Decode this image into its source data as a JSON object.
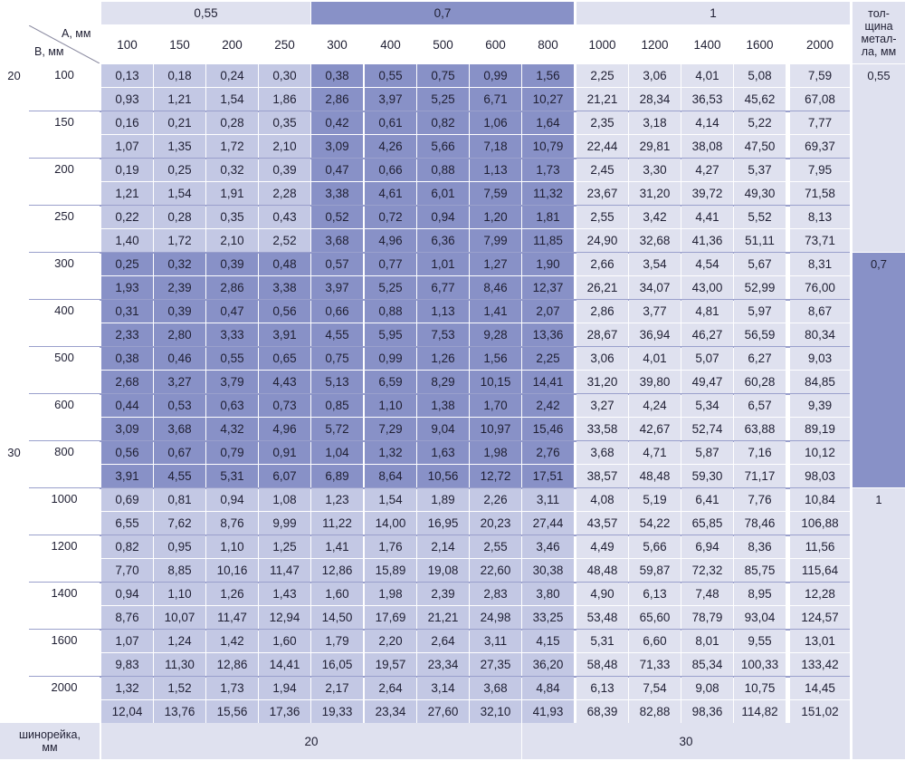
{
  "thickness_groups": [
    {
      "label": "0,55",
      "level": 1
    },
    {
      "label": "0,7",
      "level": 3
    },
    {
      "label": "1",
      "level": 1
    }
  ],
  "corner": {
    "a_label": "A, мм",
    "b_label": "B, мм"
  },
  "thickness_header": "тол-\nщина\nметал-\nла, мм",
  "a_values": [
    "100",
    "150",
    "200",
    "250",
    "300",
    "400",
    "500",
    "600",
    "800",
    "1000",
    "1200",
    "1400",
    "1600",
    "2000"
  ],
  "rows": [
    {
      "b": "100",
      "top": [
        "0,13",
        "0,18",
        "0,24",
        "0,30",
        "0,38",
        "0,55",
        "0,75",
        "0,99",
        "1,56",
        "2,25",
        "3,06",
        "4,01",
        "5,08",
        "7,59"
      ],
      "bottom": [
        "0,93",
        "1,21",
        "1,54",
        "1,86",
        "2,86",
        "3,97",
        "5,25",
        "6,71",
        "10,27",
        "21,21",
        "28,34",
        "36,53",
        "45,62",
        "67,08"
      ]
    },
    {
      "b": "150",
      "top": [
        "0,16",
        "0,21",
        "0,28",
        "0,35",
        "0,42",
        "0,61",
        "0,82",
        "1,06",
        "1,64",
        "2,35",
        "3,18",
        "4,14",
        "5,22",
        "7,77"
      ],
      "bottom": [
        "1,07",
        "1,35",
        "1,72",
        "2,10",
        "3,09",
        "4,26",
        "5,66",
        "7,18",
        "10,79",
        "22,44",
        "29,81",
        "38,08",
        "47,50",
        "69,37"
      ]
    },
    {
      "b": "200",
      "top": [
        "0,19",
        "0,25",
        "0,32",
        "0,39",
        "0,47",
        "0,66",
        "0,88",
        "1,13",
        "1,73",
        "2,45",
        "3,30",
        "4,27",
        "5,37",
        "7,95"
      ],
      "bottom": [
        "1,21",
        "1,54",
        "1,91",
        "2,28",
        "3,38",
        "4,61",
        "6,01",
        "7,59",
        "11,32",
        "23,67",
        "31,20",
        "39,72",
        "49,30",
        "71,58"
      ]
    },
    {
      "b": "250",
      "top": [
        "0,22",
        "0,28",
        "0,35",
        "0,43",
        "0,52",
        "0,72",
        "0,94",
        "1,20",
        "1,81",
        "2,55",
        "3,42",
        "4,41",
        "5,52",
        "8,13"
      ],
      "bottom": [
        "1,40",
        "1,72",
        "2,10",
        "2,52",
        "3,68",
        "4,96",
        "6,36",
        "7,99",
        "11,85",
        "24,90",
        "32,68",
        "41,36",
        "51,11",
        "73,71"
      ]
    },
    {
      "b": "300",
      "top": [
        "0,25",
        "0,32",
        "0,39",
        "0,48",
        "0,57",
        "0,77",
        "1,01",
        "1,27",
        "1,90",
        "2,66",
        "3,54",
        "4,54",
        "5,67",
        "8,31"
      ],
      "bottom": [
        "1,93",
        "2,39",
        "2,86",
        "3,38",
        "3,97",
        "5,25",
        "6,77",
        "8,46",
        "12,37",
        "26,21",
        "34,07",
        "43,00",
        "52,99",
        "76,00"
      ]
    },
    {
      "b": "400",
      "top": [
        "0,31",
        "0,39",
        "0,47",
        "0,56",
        "0,66",
        "0,88",
        "1,13",
        "1,41",
        "2,07",
        "2,86",
        "3,77",
        "4,81",
        "5,97",
        "8,67"
      ],
      "bottom": [
        "2,33",
        "2,80",
        "3,33",
        "3,91",
        "4,55",
        "5,95",
        "7,53",
        "9,28",
        "13,36",
        "28,67",
        "36,94",
        "46,27",
        "56,59",
        "80,34"
      ]
    },
    {
      "b": "500",
      "top": [
        "0,38",
        "0,46",
        "0,55",
        "0,65",
        "0,75",
        "0,99",
        "1,26",
        "1,56",
        "2,25",
        "3,06",
        "4,01",
        "5,07",
        "6,27",
        "9,03"
      ],
      "bottom": [
        "2,68",
        "3,27",
        "3,79",
        "4,43",
        "5,13",
        "6,59",
        "8,29",
        "10,15",
        "14,41",
        "31,20",
        "39,80",
        "49,47",
        "60,28",
        "84,85"
      ]
    },
    {
      "b": "600",
      "top": [
        "0,44",
        "0,53",
        "0,63",
        "0,73",
        "0,85",
        "1,10",
        "1,38",
        "1,70",
        "2,42",
        "3,27",
        "4,24",
        "5,34",
        "6,57",
        "9,39"
      ],
      "bottom": [
        "3,09",
        "3,68",
        "4,32",
        "4,96",
        "5,72",
        "7,29",
        "9,04",
        "10,97",
        "15,46",
        "33,58",
        "42,67",
        "52,74",
        "63,88",
        "89,19"
      ]
    },
    {
      "b": "800",
      "top": [
        "0,56",
        "0,67",
        "0,79",
        "0,91",
        "1,04",
        "1,32",
        "1,63",
        "1,98",
        "2,76",
        "3,68",
        "4,71",
        "5,87",
        "7,16",
        "10,12"
      ],
      "bottom": [
        "3,91",
        "4,55",
        "5,31",
        "6,07",
        "6,89",
        "8,64",
        "10,56",
        "12,72",
        "17,51",
        "38,57",
        "48,48",
        "59,30",
        "71,17",
        "98,03"
      ]
    },
    {
      "b": "1000",
      "top": [
        "0,69",
        "0,81",
        "0,94",
        "1,08",
        "1,23",
        "1,54",
        "1,89",
        "2,26",
        "3,11",
        "4,08",
        "5,19",
        "6,41",
        "7,76",
        "10,84"
      ],
      "bottom": [
        "6,55",
        "7,62",
        "8,76",
        "9,99",
        "11,22",
        "14,00",
        "16,95",
        "20,23",
        "27,44",
        "43,57",
        "54,22",
        "65,85",
        "78,46",
        "106,88"
      ]
    },
    {
      "b": "1200",
      "top": [
        "0,82",
        "0,95",
        "1,10",
        "1,25",
        "1,41",
        "1,76",
        "2,14",
        "2,55",
        "3,46",
        "4,49",
        "5,66",
        "6,94",
        "8,36",
        "11,56"
      ],
      "bottom": [
        "7,70",
        "8,85",
        "10,16",
        "11,47",
        "12,86",
        "15,89",
        "19,08",
        "22,60",
        "30,38",
        "48,48",
        "59,87",
        "72,32",
        "85,75",
        "115,64"
      ]
    },
    {
      "b": "1400",
      "top": [
        "0,94",
        "1,10",
        "1,26",
        "1,43",
        "1,60",
        "1,98",
        "2,39",
        "2,83",
        "3,80",
        "4,90",
        "6,13",
        "7,48",
        "8,95",
        "12,28"
      ],
      "bottom": [
        "8,76",
        "10,07",
        "11,47",
        "12,94",
        "14,50",
        "17,69",
        "21,21",
        "24,98",
        "33,25",
        "53,48",
        "65,60",
        "78,79",
        "93,04",
        "124,57"
      ]
    },
    {
      "b": "1600",
      "top": [
        "1,07",
        "1,24",
        "1,42",
        "1,60",
        "1,79",
        "2,20",
        "2,64",
        "3,11",
        "4,15",
        "5,31",
        "6,60",
        "8,01",
        "9,55",
        "13,01"
      ],
      "bottom": [
        "9,83",
        "11,30",
        "12,86",
        "14,41",
        "16,05",
        "19,57",
        "23,34",
        "27,35",
        "36,20",
        "58,48",
        "71,33",
        "85,34",
        "100,33",
        "133,42"
      ]
    },
    {
      "b": "2000",
      "top": [
        "1,32",
        "1,52",
        "1,73",
        "1,94",
        "2,17",
        "2,64",
        "3,14",
        "3,68",
        "4,84",
        "6,13",
        "7,54",
        "9,08",
        "10,75",
        "14,45"
      ],
      "bottom": [
        "12,04",
        "13,76",
        "15,56",
        "17,36",
        "19,33",
        "23,34",
        "27,60",
        "32,10",
        "41,93",
        "68,39",
        "82,88",
        "98,36",
        "114,82",
        "151,02"
      ]
    }
  ],
  "left_labels": [
    {
      "label": "20",
      "row": 0
    },
    {
      "label": "30",
      "row": 8
    }
  ],
  "right_labels": [
    {
      "label": "0,55",
      "row": 0
    },
    {
      "label": "0,7",
      "row": 4
    },
    {
      "label": "1",
      "row": 9
    }
  ],
  "footer": {
    "label": "шинорейка,\nмм",
    "groups": [
      {
        "label": "20",
        "span": 8
      },
      {
        "label": "30",
        "span": 6
      }
    ]
  }
}
